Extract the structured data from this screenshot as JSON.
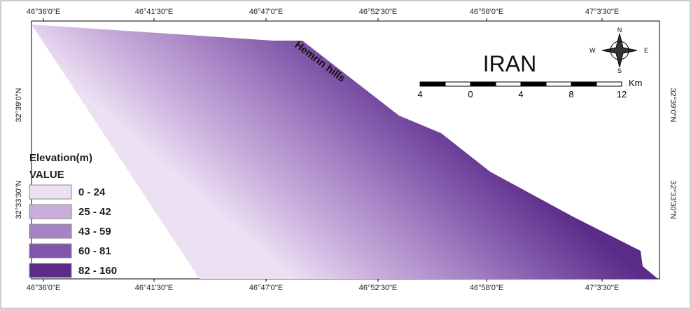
{
  "map": {
    "top_labels": [
      "46°36'0\"E",
      "46°41'30\"E",
      "46°47'0\"E",
      "46°52'30\"E",
      "46°58'0\"E",
      "47°3'30\"E"
    ],
    "bottom_labels": [
      "46°36'0\"E",
      "46°41'30\"E",
      "46°47'0\"E",
      "46°52'30\"E",
      "46°58'0\"E",
      "47°3'30\"E"
    ],
    "left_labels": [
      "32°39'0\"N",
      "32°33'30\"N"
    ],
    "right_labels": [
      "32°39'0\"N",
      "32°33'30\"N"
    ],
    "title": "IRAN",
    "place_label": "Hemrin hills",
    "scale": {
      "unit": "Km",
      "ticks": [
        "4",
        "0",
        "4",
        "8",
        "12"
      ]
    },
    "compass": {
      "n": "N",
      "s": "S",
      "e": "E",
      "w": "W"
    },
    "legend": {
      "title": "Elevation(m)",
      "subtitle": "VALUE",
      "items": [
        {
          "label": "0 - 24",
          "color": "#ece0f3"
        },
        {
          "label": "25 - 42",
          "color": "#c9aedc"
        },
        {
          "label": "43 - 59",
          "color": "#a683c4"
        },
        {
          "label": "60 - 81",
          "color": "#7f56a9"
        },
        {
          "label": "82 - 160",
          "color": "#5b2b88"
        }
      ]
    }
  }
}
